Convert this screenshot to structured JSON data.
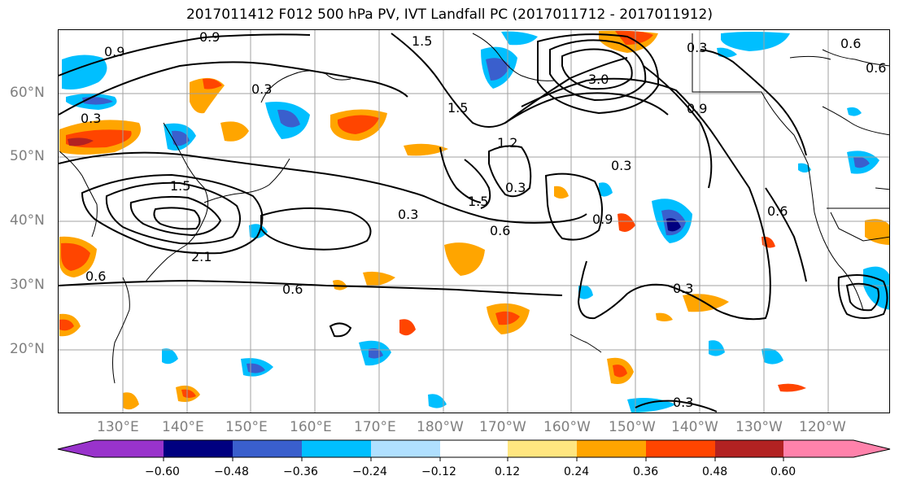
{
  "title": "2017011412 F012 500 hPa PV, IVT Landfall PC (2017011712 - 2017011912)",
  "lat_labels": [
    "60°N",
    "50°N",
    "40°N",
    "30°N",
    "20°N"
  ],
  "lon_labels": [
    "130°E",
    "140°E",
    "150°E",
    "160°E",
    "170°E",
    "180°W",
    "170°W",
    "160°W",
    "150°W",
    "140°W",
    "130°W",
    "120°W"
  ],
  "contour_labels": [
    "0.9",
    "1.5",
    "0.6",
    "0.6",
    "0.3",
    "0.3",
    "0.9",
    "1.5",
    "3.0",
    "0.9",
    "0.3",
    "1.2",
    "1.5",
    "0.3",
    "1.5",
    "0.3",
    "0.6",
    "2.1",
    "0.6",
    "0.3",
    "0.6",
    "0.6",
    "0.3",
    "0.3",
    "0.9"
  ],
  "colorbar": {
    "ticks": [
      "−0.60",
      "−0.48",
      "−0.36",
      "−0.24",
      "−0.12",
      "0.12",
      "0.24",
      "0.36",
      "0.48",
      "0.60"
    ],
    "colors": [
      "#9933cc",
      "#000080",
      "#3a5fcd",
      "#00bfff",
      "#b0e0ff",
      "#ffffff",
      "#ffe680",
      "#ffa500",
      "#ff4500",
      "#b22222",
      "#ff82ab"
    ]
  }
}
